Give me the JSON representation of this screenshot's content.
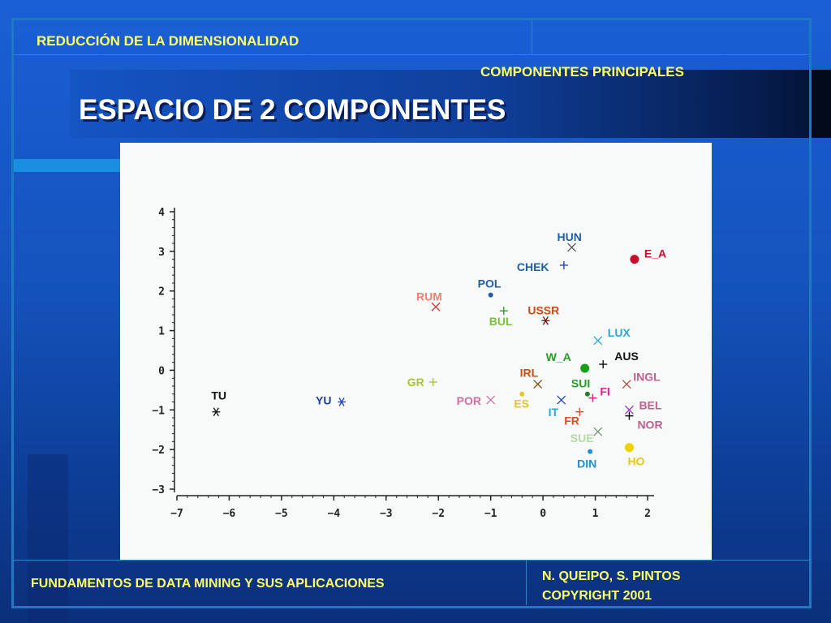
{
  "header": {
    "section": "REDUCCIÓN DE LA DIMENSIONALIDAD",
    "subsection": "COMPONENTES PRINCIPALES"
  },
  "slide": {
    "title": "ESPACIO DE 2 COMPONENTES"
  },
  "footer": {
    "course": "FUNDAMENTOS DE DATA MINING Y SUS APLICACIONES",
    "authors": "N. QUEIPO, S. PINTOS",
    "copyright": "COPYRIGHT 2001"
  },
  "colors": {
    "accent_text": "#ffff66",
    "background": "#1553bd"
  },
  "chart_data": {
    "type": "scatter",
    "title": "",
    "xlabel": "",
    "ylabel": "",
    "xlim": [
      -7,
      2
    ],
    "ylim": [
      -3,
      4
    ],
    "xticks": [
      -7,
      -6,
      -5,
      -4,
      -3,
      -2,
      -1,
      0,
      1,
      2
    ],
    "yticks": [
      -3,
      -2,
      -1,
      0,
      1,
      2,
      3,
      4
    ],
    "grid": false,
    "points": [
      {
        "label": "HUN",
        "x": 0.55,
        "y": 3.1,
        "color": "#1f5fa8",
        "marker": "x",
        "mcolor": "#555555",
        "ldx": -18,
        "ldy": -8
      },
      {
        "label": "E_A",
        "x": 1.75,
        "y": 2.8,
        "color": "#c8102e",
        "marker": "dot",
        "mcolor": "#c8102e",
        "ldx": 12,
        "ldy": -2
      },
      {
        "label": "CHEK",
        "x": 0.4,
        "y": 2.65,
        "color": "#1f5fa8",
        "marker": "+",
        "mcolor": "#1f3fcc",
        "ldx": -58,
        "ldy": 7
      },
      {
        "label": "POL",
        "x": -1.0,
        "y": 1.9,
        "color": "#1f5fa8",
        "marker": "sdot",
        "mcolor": "#1f5fa8",
        "ldx": -16,
        "ldy": -9
      },
      {
        "label": "RUM",
        "x": -2.05,
        "y": 1.6,
        "color": "#f08070",
        "marker": "x",
        "mcolor": "#e03030",
        "ldx": -24,
        "ldy": -8
      },
      {
        "label": "BUL",
        "x": -0.75,
        "y": 1.5,
        "color": "#7fbf3f",
        "marker": "+",
        "mcolor": "#2a9a2a",
        "ldx": -18,
        "ldy": 18
      },
      {
        "label": "USSR",
        "x": 0.05,
        "y": 1.25,
        "color": "#d04a10",
        "marker": "*",
        "mcolor": "#7a1010",
        "ldx": -22,
        "ldy": -8
      },
      {
        "label": "LUX",
        "x": 1.05,
        "y": 0.75,
        "color": "#2aa8d8",
        "marker": "x",
        "mcolor": "#2aa8d8",
        "ldx": 12,
        "ldy": -5
      },
      {
        "label": "W_A",
        "x": 0.8,
        "y": 0.05,
        "color": "#2a9a2a",
        "marker": "dot",
        "mcolor": "#16a016",
        "ldx": -48,
        "ldy": -9
      },
      {
        "label": "AUS",
        "x": 1.15,
        "y": 0.15,
        "color": "#111111",
        "marker": "+",
        "mcolor": "#111111",
        "ldx": 14,
        "ldy": -5
      },
      {
        "label": "INGL",
        "x": 1.6,
        "y": -0.35,
        "color": "#c06090",
        "marker": "x",
        "mcolor": "#b0503a",
        "ldx": 8,
        "ldy": -4
      },
      {
        "label": "IRL",
        "x": -0.1,
        "y": -0.35,
        "color": "#d04a10",
        "marker": "x",
        "mcolor": "#7a4a10",
        "ldx": -22,
        "ldy": -9
      },
      {
        "label": "SUI",
        "x": 0.85,
        "y": -0.6,
        "color": "#2a9a2a",
        "marker": "sdot",
        "mcolor": "#2a7a2a",
        "ldx": -20,
        "ldy": -8
      },
      {
        "label": "FI",
        "x": 0.95,
        "y": -0.7,
        "color": "#e0208a",
        "marker": "+",
        "mcolor": "#e0208a",
        "ldx": 9,
        "ldy": -3
      },
      {
        "label": "GR",
        "x": -2.1,
        "y": -0.3,
        "color": "#a8c82a",
        "marker": "+",
        "mcolor": "#a8c82a",
        "ldx": -32,
        "ldy": 5
      },
      {
        "label": "TU",
        "x": -6.25,
        "y": -1.05,
        "color": "#111111",
        "marker": "*",
        "mcolor": "#111111",
        "ldx": -6,
        "ldy": -15
      },
      {
        "label": "YU",
        "x": -3.85,
        "y": -0.8,
        "color": "#1f3fa0",
        "marker": "*",
        "mcolor": "#1f3fcc",
        "ldx": -32,
        "ldy": 3
      },
      {
        "label": "POR",
        "x": -1.0,
        "y": -0.75,
        "color": "#d070a0",
        "marker": "x",
        "mcolor": "#d070a0",
        "ldx": -42,
        "ldy": 6
      },
      {
        "label": "ES",
        "x": -0.4,
        "y": -0.6,
        "color": "#e8c81a",
        "marker": "sdot",
        "mcolor": "#e8c81a",
        "ldx": -10,
        "ldy": 17
      },
      {
        "label": "IT",
        "x": 0.35,
        "y": -0.75,
        "color": "#2aa8d8",
        "marker": "x",
        "mcolor": "#1f3fcc",
        "ldx": -16,
        "ldy": 20
      },
      {
        "label": "FR",
        "x": 0.7,
        "y": -1.05,
        "color": "#e04a20",
        "marker": "+",
        "mcolor": "#e04a20",
        "ldx": -19,
        "ldy": 16
      },
      {
        "label": "BEL",
        "x": 1.65,
        "y": -1.0,
        "color": "#c06090",
        "marker": "x",
        "mcolor": "#9a30c0",
        "ldx": 12,
        "ldy": -1
      },
      {
        "label": "NOR",
        "x": 1.65,
        "y": -1.15,
        "color": "#c06090",
        "marker": "+",
        "mcolor": "#111111",
        "ldx": 10,
        "ldy": 16
      },
      {
        "label": "SUE",
        "x": 1.05,
        "y": -1.55,
        "color": "#b8d8a8",
        "marker": "x",
        "mcolor": "#6a9a6a",
        "ldx": -34,
        "ldy": 13
      },
      {
        "label": "DIN",
        "x": 0.9,
        "y": -2.05,
        "color": "#1f8fd0",
        "marker": "sdot",
        "mcolor": "#1f8fd0",
        "ldx": -16,
        "ldy": 20
      },
      {
        "label": "HO",
        "x": 1.65,
        "y": -1.95,
        "color": "#e8c81a",
        "marker": "dot",
        "mcolor": "#f0d000",
        "ldx": -2,
        "ldy": 22
      }
    ]
  }
}
